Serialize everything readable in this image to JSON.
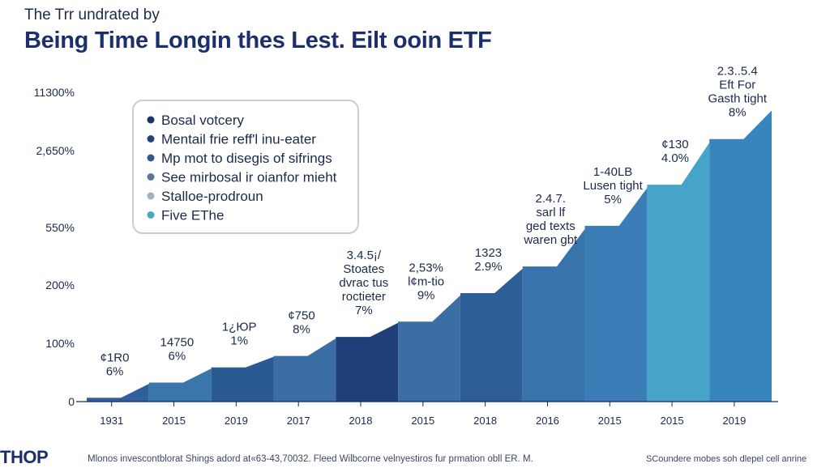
{
  "header": {
    "subtitle": "The Trr undrated by",
    "title": "Being Time Longin thes Lest. Eilt ooin ETF"
  },
  "footer": {
    "logo": "THOP",
    "note": "Mlonos invescontblorat Shings adord at«63-43,70032. Fleed Wilbcorne velnyestiros fur prmation obll ER. M.",
    "source": "SCoundere mobes soh dlepel cell anrine"
  },
  "chart_data": {
    "type": "area",
    "y_tick_labels": [
      "0",
      "100%",
      "200%",
      "550%",
      "2,650%",
      "11300%"
    ],
    "x_tick_labels": [
      "1931",
      "2015",
      "2019",
      "2017",
      "2018",
      "2015",
      "2018",
      "2016",
      "2015",
      "2015",
      "2019"
    ],
    "legend": {
      "position": "top-left",
      "items": [
        {
          "label": "Bosal votcery",
          "color": "#1c3366"
        },
        {
          "label": "Mentail frie reff'l inu-eater",
          "color": "#24427a"
        },
        {
          "label": "Mp mot to disegis of sifrings",
          "color": "#2f5b8c"
        },
        {
          "label": "See mirbosal ir oianfor mieht",
          "color": "#5f7595"
        },
        {
          "label": "Stalloe-prodroun",
          "color": "#a5b0bf"
        },
        {
          "label": "Five EThe",
          "color": "#46a9c4"
        }
      ]
    },
    "series": {
      "level": [
        0.1,
        0.5,
        0.9,
        1.2,
        1.7,
        2.1,
        2.85,
        3.55,
        4.62,
        5.7,
        6.9
      ],
      "colors": [
        "#2f5f9c",
        "#3a76ac",
        "#2a5a92",
        "#3b6ea4",
        "#1f3f78",
        "#3a6ea5",
        "#2e5e98",
        "#3873ac",
        "#3a7db7",
        "#45a4c8",
        "#3884bd"
      ]
    },
    "annotations": [
      {
        "lines": [
          "¢1R0",
          "6%"
        ]
      },
      {
        "lines": [
          "14750",
          "6%"
        ]
      },
      {
        "lines": [
          "1¿ЮP",
          "1%"
        ]
      },
      {
        "lines": [
          "¢750",
          "8%"
        ]
      },
      {
        "lines": [
          "3.4.5¡/",
          "Stoates",
          "dvrac tus",
          "roctieter",
          "7%"
        ]
      },
      {
        "lines": [
          "2,53%",
          "l¢m-tio",
          "9%"
        ]
      },
      {
        "lines": [
          "1323",
          "2.9%"
        ]
      },
      {
        "lines": [
          "2.4.7.",
          "sarl lf",
          "ged texts",
          "waren gbt"
        ]
      },
      {
        "lines": [
          "1-40LB",
          "Lusen tight",
          "5%"
        ]
      },
      {
        "lines": [
          "¢130",
          "4.0%"
        ]
      },
      {
        "lines": [
          "2.3..5.4",
          "Eft For",
          "Gasth tight",
          "8%"
        ]
      }
    ]
  }
}
